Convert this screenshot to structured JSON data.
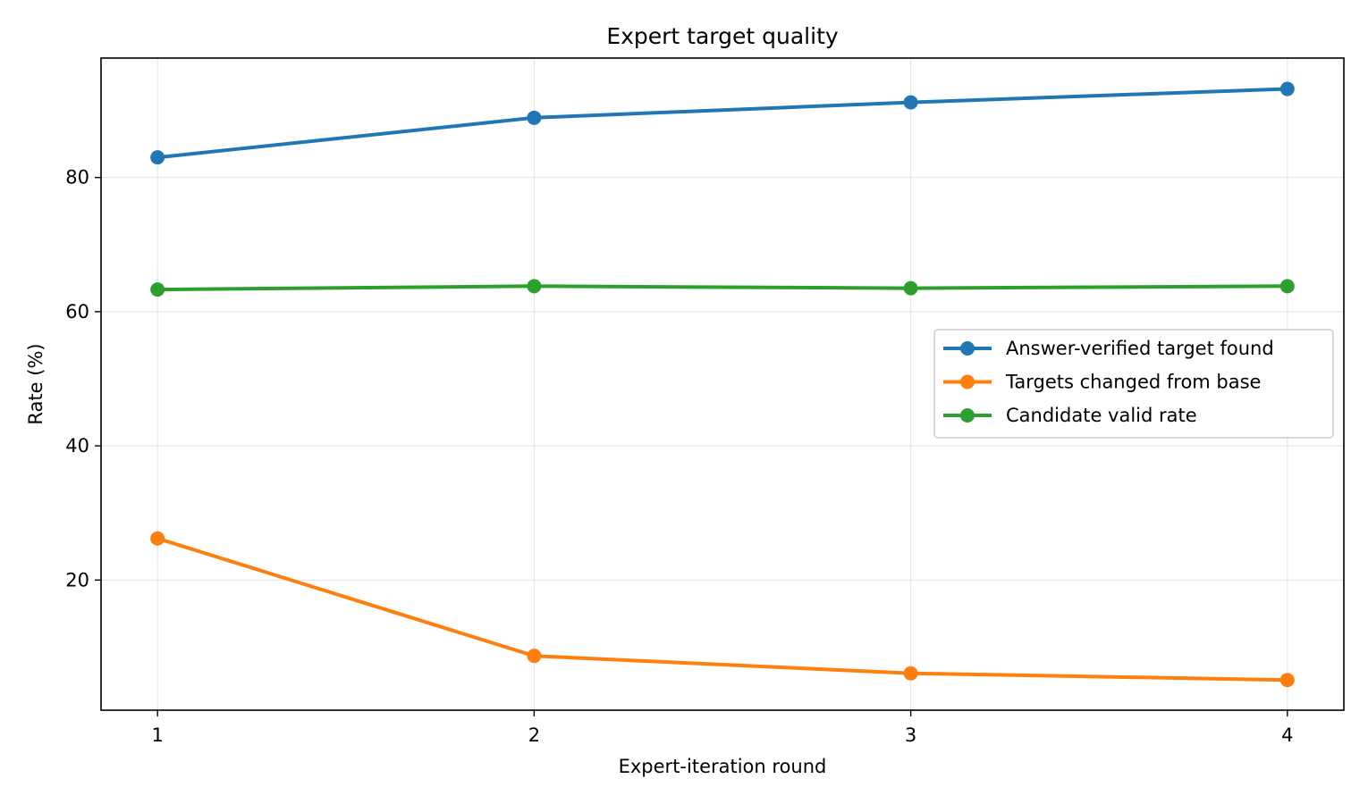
{
  "chart_data": {
    "type": "line",
    "title": "Expert target quality",
    "xlabel": "Expert-iteration round",
    "ylabel": "Rate (%)",
    "x": [
      1,
      2,
      3,
      4
    ],
    "x_ticks": [
      "1",
      "2",
      "3",
      "4"
    ],
    "y_ticks": [
      "20",
      "40",
      "60",
      "80"
    ],
    "xlim": [
      0.85,
      4.15
    ],
    "ylim": [
      0.6,
      97.8
    ],
    "grid": true,
    "legend_position": "center-right",
    "series": [
      {
        "name": "Answer-verified target found",
        "color": "#1f77b4",
        "values": [
          83.0,
          88.9,
          91.2,
          93.2
        ]
      },
      {
        "name": "Targets changed from base",
        "color": "#ff7f0e",
        "values": [
          26.2,
          8.7,
          6.1,
          5.1
        ]
      },
      {
        "name": "Candidate valid rate",
        "color": "#2ca02c",
        "values": [
          63.3,
          63.8,
          63.5,
          63.8
        ]
      }
    ]
  }
}
